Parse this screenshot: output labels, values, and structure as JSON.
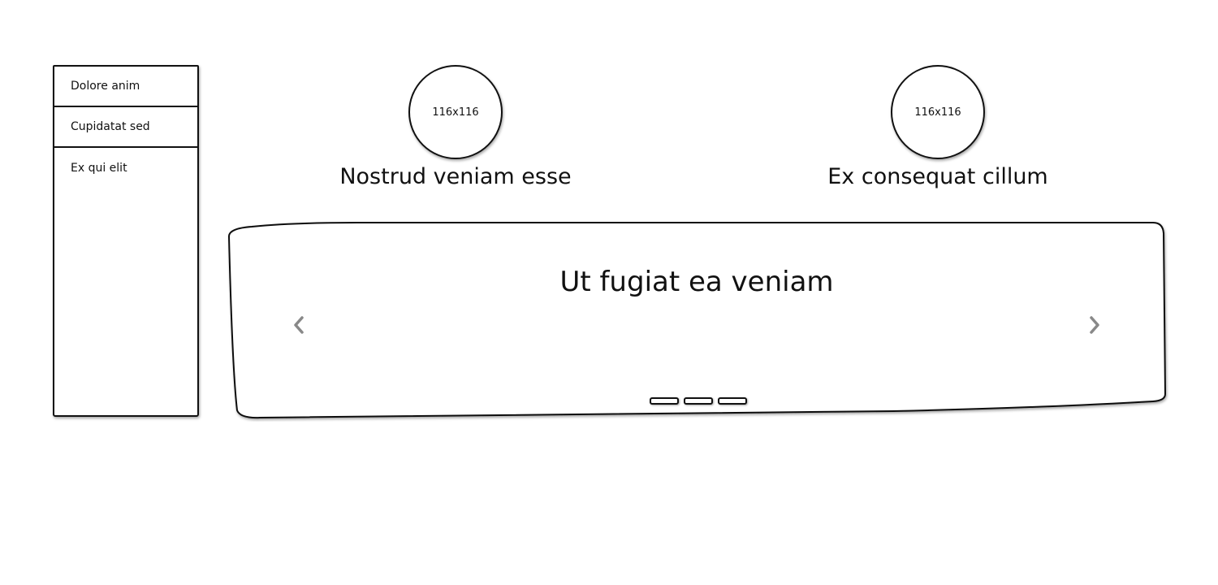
{
  "sidebar": {
    "items": [
      {
        "label": "Dolore anim"
      },
      {
        "label": "Cupidatat sed"
      },
      {
        "label": "Ex qui elit"
      }
    ]
  },
  "cards": [
    {
      "avatar_text": "116x116",
      "title": "Nostrud veniam esse"
    },
    {
      "avatar_text": "116x116",
      "title": "Ex consequat cillum"
    }
  ],
  "carousel": {
    "heading": "Ut fugiat ea veniam",
    "prev_icon": "chevron-left-icon",
    "next_icon": "chevron-right-icon",
    "slide_count": 3
  },
  "colors": {
    "stroke": "#111111",
    "arrow": "#888888",
    "background": "#ffffff"
  }
}
